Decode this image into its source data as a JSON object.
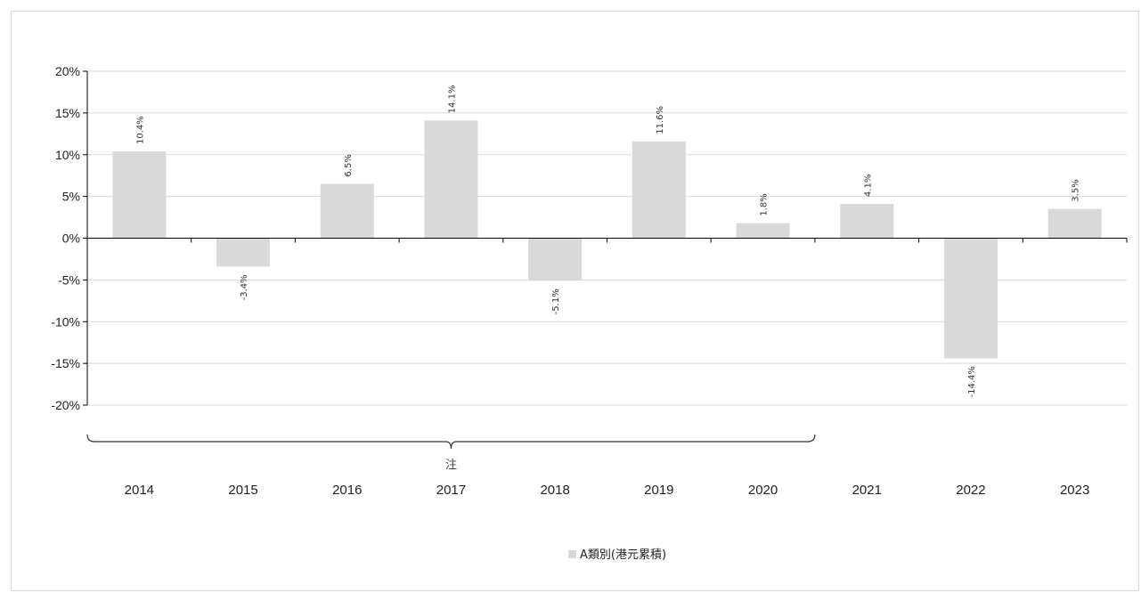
{
  "chart_data": {
    "type": "bar",
    "categories": [
      "2014",
      "2015",
      "2016",
      "2017",
      "2018",
      "2019",
      "2020",
      "2021",
      "2022",
      "2023"
    ],
    "series": [
      {
        "name": "A類別(港元累積)",
        "values": [
          10.4,
          -3.4,
          6.5,
          14.1,
          -5.1,
          11.6,
          1.8,
          4.1,
          -14.4,
          3.5
        ],
        "labels": [
          "10.4%",
          "-3.4%",
          "6.5%",
          "14.1%",
          "-5.1%",
          "11.6%",
          "1.8%",
          "4.1%",
          "-14.4%",
          "3.5%"
        ]
      }
    ],
    "ylim": [
      -20,
      20
    ],
    "yticks": [
      20,
      15,
      10,
      5,
      0,
      -5,
      -10,
      -15,
      -20
    ],
    "ytick_labels": [
      "20%",
      "15%",
      "10%",
      "5%",
      "0%",
      "-5%",
      "-10%",
      "-15%",
      "-20%"
    ],
    "grid": true,
    "legend": "bottom-center",
    "annotation": {
      "text": "注",
      "span": [
        "2014",
        "2020"
      ]
    },
    "colors": {
      "bar": "#d9d9d9",
      "grid": "#d9d9d9",
      "axis": "#000000",
      "text": "#222222"
    }
  }
}
